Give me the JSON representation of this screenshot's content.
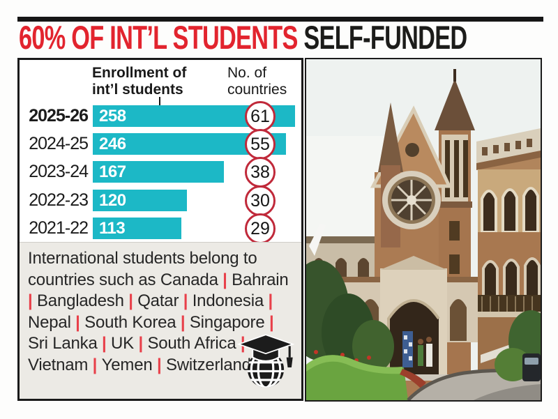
{
  "title": {
    "red": "60% OF INT’L STUDENTS",
    "black": "SELF-FUNDED"
  },
  "chart_data": {
    "type": "bar",
    "orientation": "horizontal",
    "title": "60% OF INT’L STUDENTS SELF-FUNDED",
    "categories": [
      "2025-26",
      "2024-25",
      "2023-24",
      "2022-23",
      "2021-22"
    ],
    "series": [
      {
        "name": "Enrollment of int’l students",
        "values": [
          258,
          246,
          167,
          120,
          113
        ]
      },
      {
        "name": "No. of countries",
        "values": [
          61,
          55,
          38,
          30,
          29
        ]
      }
    ],
    "value_labels": "inside-bar-start",
    "countries_display": "red-circled-numbers",
    "xlim": [
      0,
      258
    ],
    "grid": false,
    "legend": "column-headers"
  },
  "info": {
    "intro": "International students belong to countries such as",
    "countries": [
      "Canada",
      "Bahrain",
      "Bangladesh",
      "Qatar",
      "Indonesia",
      "Nepal",
      "South Korea",
      "Singapore",
      "Sri Lanka",
      "UK",
      "South Africa",
      "Vietnam",
      "Yemen",
      "Switzerland"
    ],
    "separator": "|"
  },
  "icons": {
    "info_box": "graduation-cap-globe-icon"
  },
  "colors": {
    "accent_red": "#e2242e",
    "bar_teal": "#1cb8c6",
    "circle_border_red": "#c0293a",
    "pipe_red": "#e8404a",
    "panel_gray": "#eceae5"
  }
}
